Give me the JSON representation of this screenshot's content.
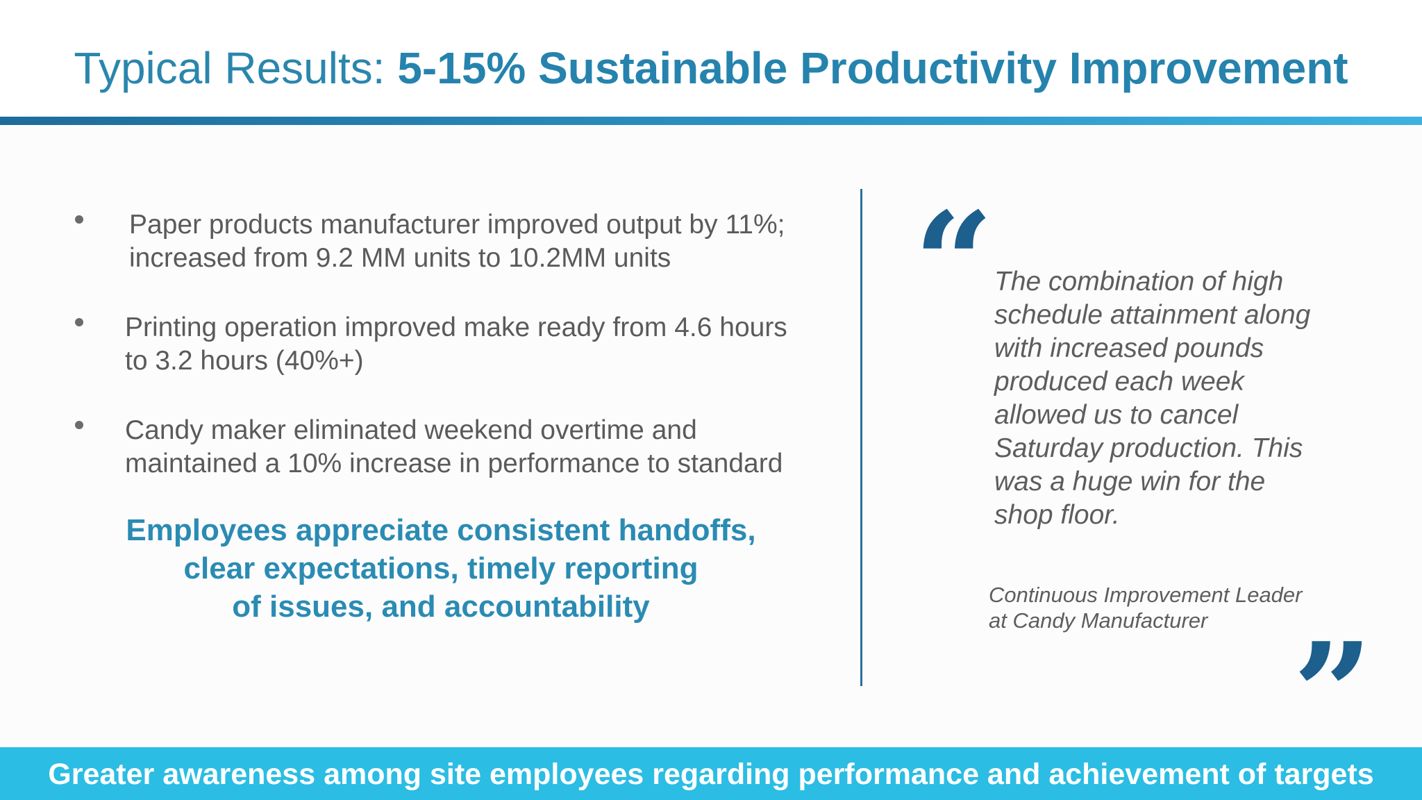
{
  "title": {
    "prefix": "Typical Results:",
    "emphasis": "5-15% Sustainable Productivity Improvement"
  },
  "results": [
    {
      "lines": [
        "Paper products manufacturer improved output by 11%;",
        "increased from 9.2 MM units to 10.2MM units"
      ]
    },
    {
      "lines": [
        "Printing operation improved make ready from 4.6 hours",
        "to 3.2 hours (40%+)"
      ]
    },
    {
      "lines": [
        "Candy maker eliminated weekend overtime and",
        "maintained a 10% increase in performance to standard"
      ]
    }
  ],
  "callout": {
    "lines": [
      "Employees appreciate consistent handoffs,",
      "clear expectations, timely reporting",
      "of issues, and accountability"
    ]
  },
  "quote": {
    "open_mark": "“",
    "close_mark": "”",
    "lines": [
      "The combination of high",
      "schedule attainment along",
      "with increased pounds",
      "produced each week",
      "allowed us to cancel",
      "Saturday production. This",
      "was a huge win for the",
      "shop floor."
    ],
    "attribution": [
      "Continuous Improvement Leader",
      "at Candy Manufacturer"
    ]
  },
  "footer": {
    "text": "Greater awareness among site employees regarding performance and achievement of targets"
  },
  "colors": {
    "title_blue": "#2a86ad",
    "accent_blue": "#2a8bb3",
    "quote_mark_blue": "#1d5f8d",
    "footer_cyan": "#2bbde3",
    "body_gray": "#5a5a5a"
  }
}
